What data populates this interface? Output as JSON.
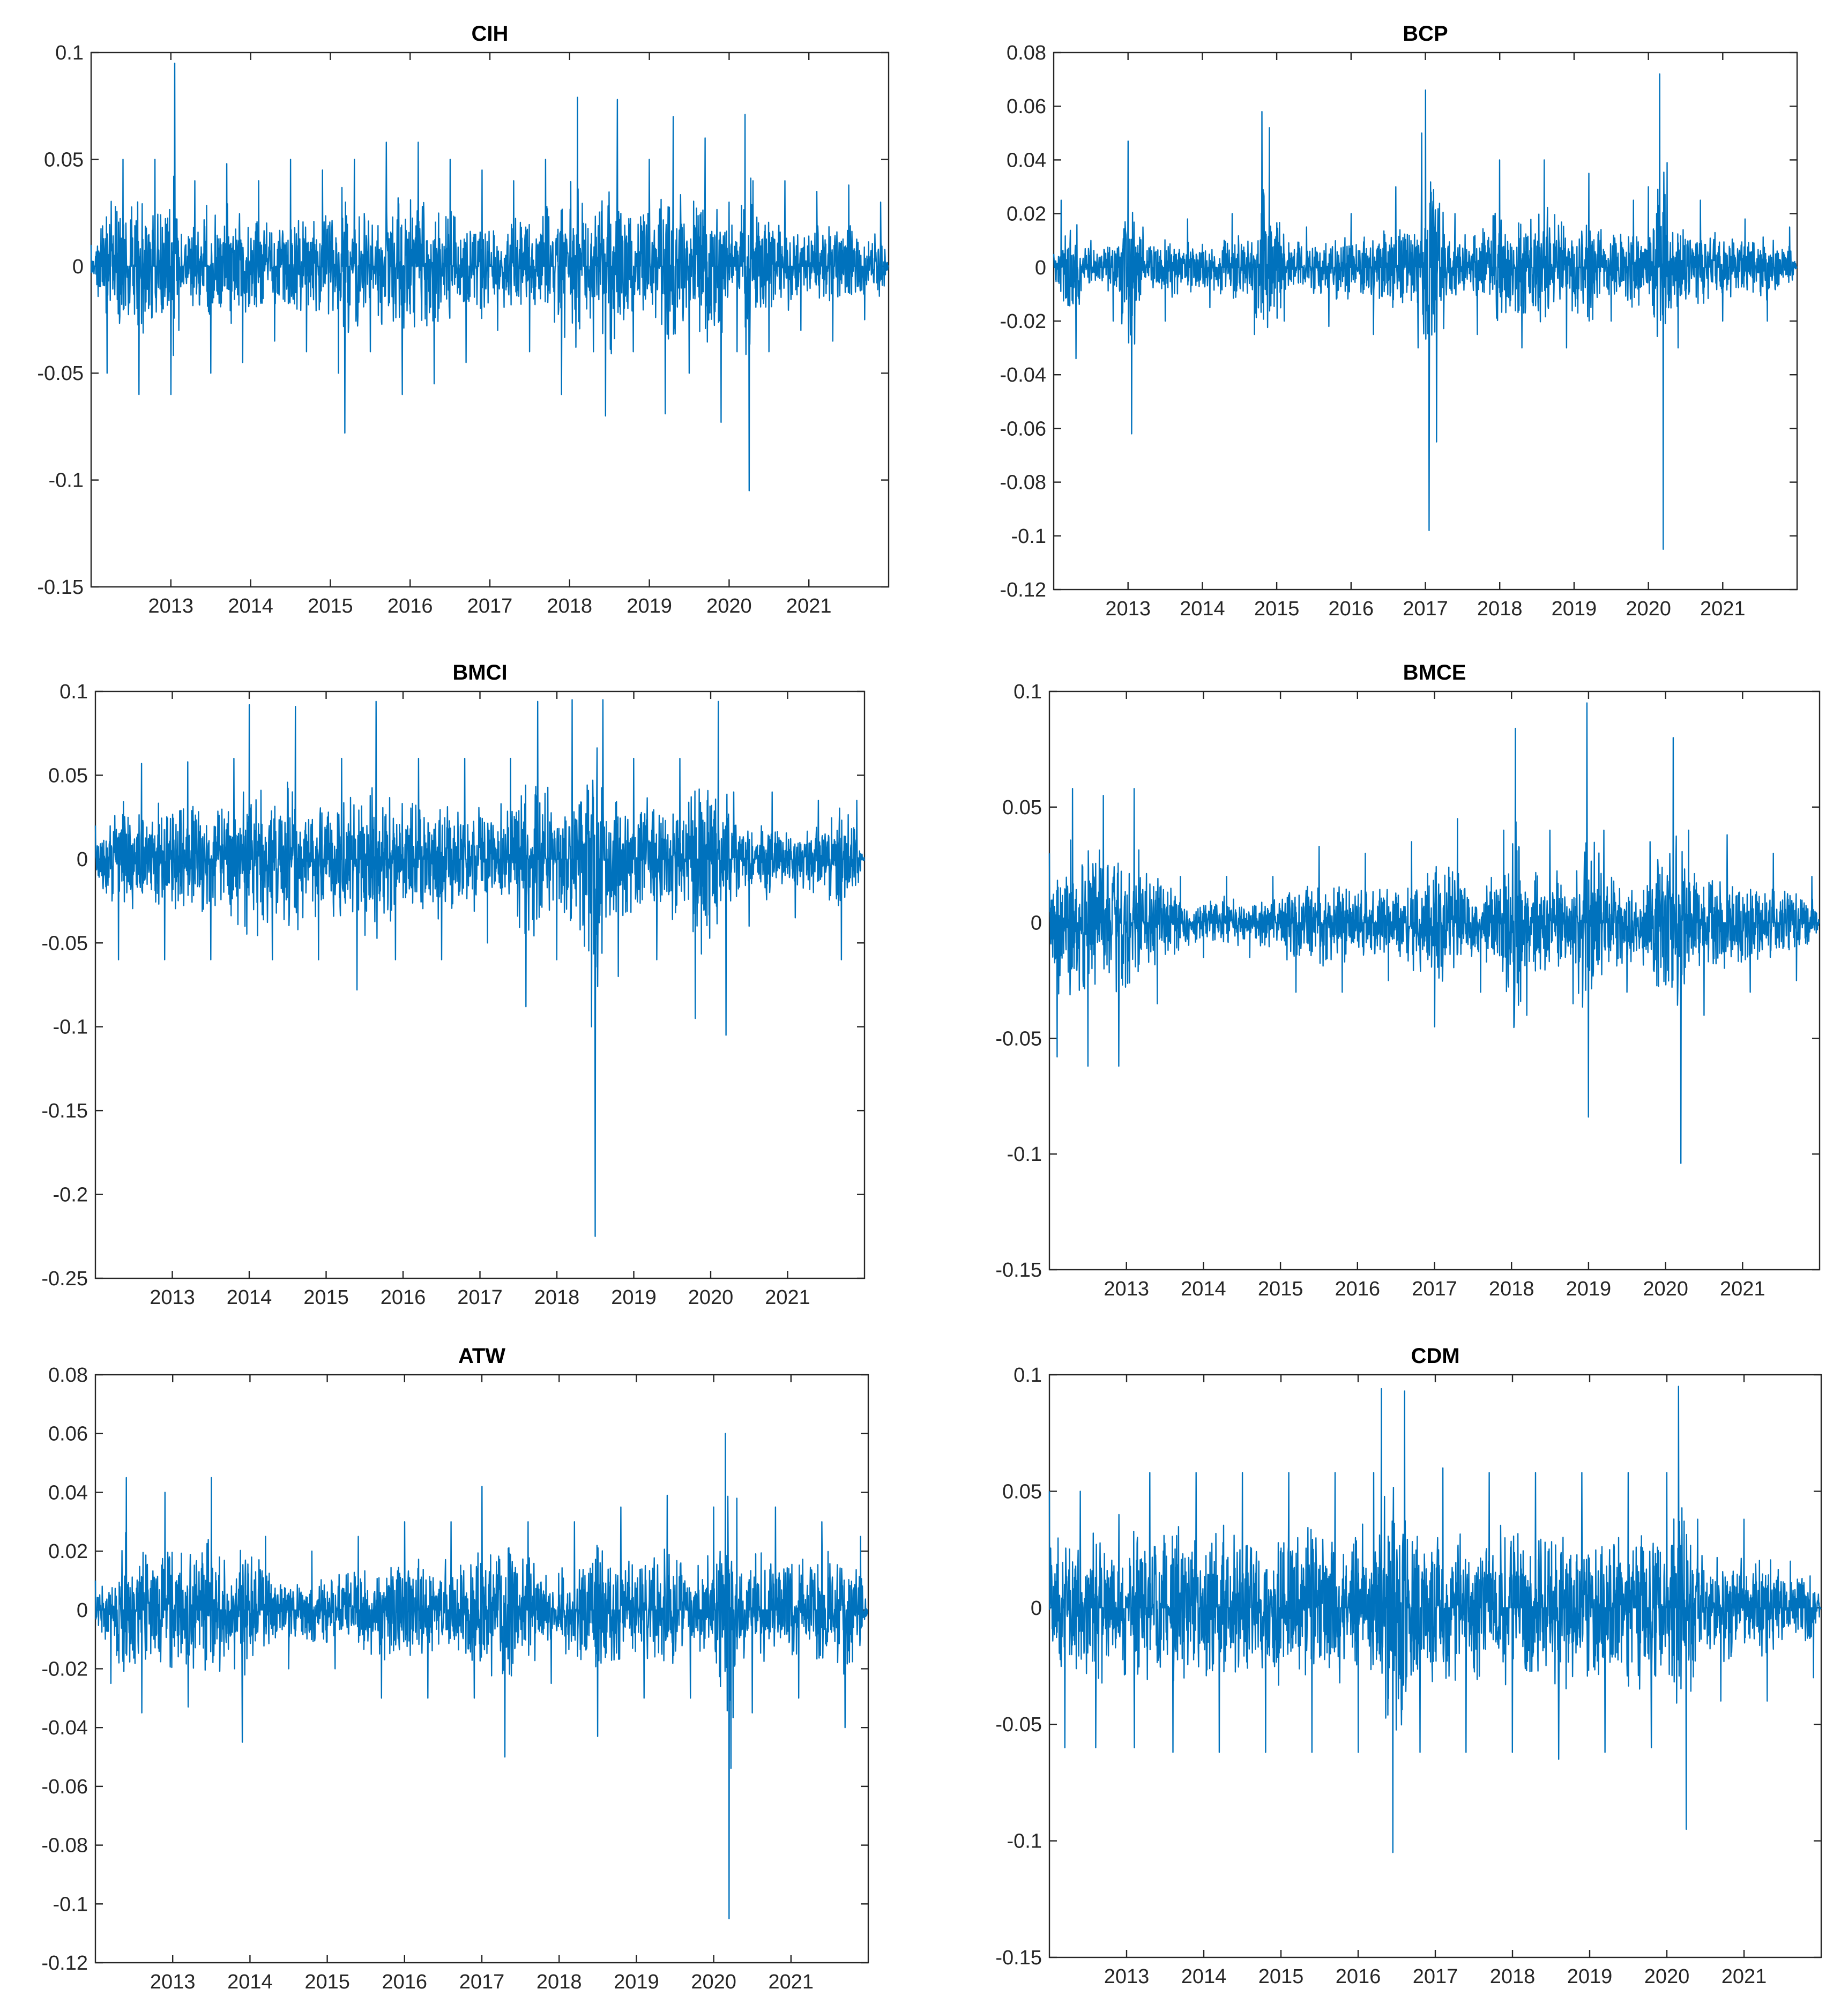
{
  "figure": {
    "line_color": "#0072BD",
    "axis_color": "#262626"
  },
  "chart_data": [
    {
      "type": "line",
      "title": "CIH",
      "xlabel": "",
      "ylabel": "",
      "xlim": [
        2012.0,
        2022.0
      ],
      "ylim": [
        -0.15,
        0.1
      ],
      "yticks": [
        0.1,
        0.05,
        0,
        -0.05,
        -0.1,
        -0.15
      ],
      "ytick_labels": [
        "0.1",
        "0.05",
        "0",
        "-0.05",
        "-0.1",
        "-0.15"
      ],
      "xticks": [
        2013,
        2014,
        2015,
        2016,
        2017,
        2018,
        2019,
        2020,
        2021
      ],
      "xtick_labels": [
        "2013",
        "2014",
        "2015",
        "2016",
        "2017",
        "2018",
        "2019",
        "2020",
        "2021"
      ],
      "grid": false,
      "series": [
        {
          "x": [
            2012.0,
            2012.2,
            2012.4,
            2012.6,
            2012.8,
            2013.0,
            2013.05,
            2013.1,
            2013.3,
            2013.5,
            2013.7,
            2013.9,
            2014.1,
            2014.3,
            2014.5,
            2014.7,
            2014.9,
            2015.1,
            2015.18,
            2015.3,
            2015.5,
            2015.7,
            2015.9,
            2016.1,
            2016.3,
            2016.5,
            2016.7,
            2016.9,
            2017.1,
            2017.3,
            2017.5,
            2017.7,
            2017.9,
            2018.1,
            2018.3,
            2018.45,
            2018.6,
            2018.8,
            2019.0,
            2019.2,
            2019.3,
            2019.5,
            2019.7,
            2019.9,
            2020.0,
            2020.1,
            2020.2,
            2020.25,
            2020.3,
            2020.5,
            2020.7,
            2020.9,
            2021.1,
            2021.3,
            2021.5,
            2021.7,
            2021.9,
            2022.0
          ],
          "y": [
            0.01,
            -0.05,
            0.05,
            -0.06,
            0.05,
            -0.06,
            0.095,
            -0.03,
            0.04,
            -0.05,
            0.048,
            -0.045,
            0.04,
            -0.035,
            0.05,
            -0.04,
            0.045,
            -0.05,
            -0.078,
            0.05,
            -0.04,
            0.058,
            -0.06,
            0.058,
            -0.055,
            0.05,
            -0.045,
            0.045,
            -0.03,
            0.04,
            -0.04,
            0.05,
            -0.06,
            0.079,
            -0.04,
            -0.07,
            0.078,
            -0.04,
            0.05,
            -0.069,
            0.07,
            -0.05,
            0.06,
            -0.073,
            0.03,
            -0.04,
            0.071,
            -0.105,
            0.04,
            -0.04,
            0.04,
            -0.03,
            0.035,
            -0.035,
            0.038,
            -0.025,
            0.03,
            0.0
          ]
        }
      ]
    },
    {
      "type": "line",
      "title": "BCP",
      "xlabel": "",
      "ylabel": "",
      "xlim": [
        2012.0,
        2022.0
      ],
      "ylim": [
        -0.12,
        0.08
      ],
      "yticks": [
        0.08,
        0.06,
        0.04,
        0.02,
        0,
        -0.02,
        -0.04,
        -0.06,
        -0.08,
        -0.1,
        -0.12
      ],
      "ytick_labels": [
        "0.08",
        "0.06",
        "0.04",
        "0.02",
        "0",
        "-0.02",
        "-0.04",
        "-0.06",
        "-0.08",
        "-0.1",
        "-0.12"
      ],
      "xticks": [
        2013,
        2014,
        2015,
        2016,
        2017,
        2018,
        2019,
        2020,
        2021
      ],
      "xtick_labels": [
        "2013",
        "2014",
        "2015",
        "2016",
        "2017",
        "2018",
        "2019",
        "2020",
        "2021"
      ],
      "grid": false,
      "series": [
        {
          "x": [
            2012.0,
            2012.1,
            2012.3,
            2012.5,
            2012.8,
            2013.0,
            2013.05,
            2013.2,
            2013.5,
            2013.8,
            2014.1,
            2014.4,
            2014.7,
            2014.8,
            2014.9,
            2015.1,
            2015.4,
            2015.7,
            2016.0,
            2016.3,
            2016.6,
            2016.9,
            2016.95,
            2017.0,
            2017.05,
            2017.15,
            2017.4,
            2017.7,
            2018.0,
            2018.3,
            2018.6,
            2018.9,
            2019.2,
            2019.5,
            2019.8,
            2020.0,
            2020.15,
            2020.2,
            2020.25,
            2020.4,
            2020.7,
            2021.0,
            2021.3,
            2021.6,
            2021.9,
            2022.0
          ],
          "y": [
            0.005,
            0.025,
            -0.034,
            0.01,
            -0.02,
            0.047,
            -0.062,
            0.015,
            -0.02,
            0.018,
            -0.015,
            0.02,
            -0.025,
            0.058,
            0.052,
            -0.02,
            0.015,
            -0.022,
            0.02,
            -0.025,
            0.03,
            -0.03,
            0.05,
            0.066,
            -0.098,
            -0.065,
            0.02,
            -0.025,
            0.04,
            -0.03,
            0.04,
            -0.03,
            0.035,
            -0.02,
            0.025,
            0.03,
            0.072,
            -0.105,
            0.039,
            -0.03,
            0.025,
            -0.02,
            0.018,
            -0.02,
            0.015,
            0.0
          ]
        }
      ]
    },
    {
      "type": "line",
      "title": "BMCI",
      "xlabel": "",
      "ylabel": "",
      "xlim": [
        2012.0,
        2022.0
      ],
      "ylim": [
        -0.25,
        0.1
      ],
      "yticks": [
        0.1,
        0.05,
        0,
        -0.05,
        -0.1,
        -0.15,
        -0.2,
        -0.25
      ],
      "ytick_labels": [
        "0.1",
        "0.05",
        "0",
        "-0.05",
        "-0.1",
        "-0.15",
        "-0.2",
        "-0.25"
      ],
      "xticks": [
        2013,
        2014,
        2015,
        2016,
        2017,
        2018,
        2019,
        2020,
        2021
      ],
      "xtick_labels": [
        "2013",
        "2014",
        "2015",
        "2016",
        "2017",
        "2018",
        "2019",
        "2020",
        "2021"
      ],
      "grid": false,
      "series": [
        {
          "x": [
            2012.0,
            2012.3,
            2012.6,
            2012.9,
            2013.2,
            2013.5,
            2013.8,
            2014.0,
            2014.3,
            2014.6,
            2014.9,
            2015.2,
            2015.4,
            2015.65,
            2015.9,
            2016.2,
            2016.5,
            2016.8,
            2017.1,
            2017.4,
            2017.6,
            2017.75,
            2018.0,
            2018.2,
            2018.45,
            2018.5,
            2018.6,
            2018.8,
            2019.0,
            2019.3,
            2019.6,
            2019.8,
            2020.1,
            2020.2,
            2020.3,
            2020.5,
            2020.8,
            2021.1,
            2021.4,
            2021.7,
            2021.9,
            2022.0
          ],
          "y": [
            0.02,
            -0.06,
            0.057,
            -0.06,
            0.058,
            -0.06,
            0.06,
            0.092,
            -0.06,
            0.091,
            -0.06,
            0.06,
            -0.078,
            0.094,
            -0.06,
            0.06,
            -0.06,
            0.06,
            -0.05,
            0.06,
            -0.088,
            0.094,
            -0.06,
            0.095,
            -0.1,
            -0.225,
            0.095,
            -0.07,
            0.06,
            -0.06,
            0.06,
            -0.095,
            0.094,
            -0.105,
            0.04,
            -0.04,
            0.04,
            -0.035,
            0.035,
            -0.06,
            0.035,
            0.0
          ]
        }
      ]
    },
    {
      "type": "line",
      "title": "BMCE",
      "xlabel": "",
      "ylabel": "",
      "xlim": [
        2012.0,
        2022.0
      ],
      "ylim": [
        -0.15,
        0.1
      ],
      "yticks": [
        0.1,
        0.05,
        0,
        -0.05,
        -0.1,
        -0.15
      ],
      "ytick_labels": [
        "0.1",
        "0.05",
        "0",
        "-0.05",
        "-0.1",
        "-0.15"
      ],
      "xticks": [
        2013,
        2014,
        2015,
        2016,
        2017,
        2018,
        2019,
        2020,
        2021
      ],
      "xtick_labels": [
        "2013",
        "2014",
        "2015",
        "2016",
        "2017",
        "2018",
        "2019",
        "2020",
        "2021"
      ],
      "grid": false,
      "series": [
        {
          "x": [
            2012.0,
            2012.1,
            2012.3,
            2012.5,
            2012.7,
            2012.9,
            2013.1,
            2013.4,
            2013.7,
            2014.0,
            2014.3,
            2014.6,
            2014.9,
            2015.2,
            2015.5,
            2015.8,
            2016.1,
            2016.4,
            2016.7,
            2017.0,
            2017.3,
            2017.6,
            2017.9,
            2018.05,
            2018.2,
            2018.5,
            2018.8,
            2018.98,
            2019.0,
            2019.2,
            2019.5,
            2019.8,
            2020.1,
            2020.2,
            2020.3,
            2020.5,
            2020.8,
            2021.1,
            2021.4,
            2021.7,
            2021.9,
            2022.0
          ],
          "y": [
            0.03,
            -0.058,
            0.058,
            -0.062,
            0.055,
            -0.062,
            0.058,
            -0.035,
            0.02,
            -0.015,
            0.02,
            -0.015,
            0.02,
            -0.03,
            0.033,
            -0.03,
            0.03,
            -0.025,
            0.035,
            -0.045,
            0.045,
            -0.03,
            0.04,
            0.084,
            -0.04,
            0.04,
            -0.035,
            0.095,
            -0.084,
            0.04,
            -0.03,
            0.035,
            0.08,
            -0.104,
            0.04,
            -0.04,
            0.038,
            -0.03,
            0.03,
            -0.025,
            0.02,
            0.0
          ]
        }
      ]
    },
    {
      "type": "line",
      "title": "ATW",
      "xlabel": "",
      "ylabel": "",
      "xlim": [
        2012.0,
        2022.0
      ],
      "ylim": [
        -0.12,
        0.08
      ],
      "yticks": [
        0.08,
        0.06,
        0.04,
        0.02,
        0,
        -0.02,
        -0.04,
        -0.06,
        -0.08,
        -0.1,
        -0.12
      ],
      "ytick_labels": [
        "0.08",
        "0.06",
        "0.04",
        "0.02",
        "0",
        "-0.02",
        "-0.04",
        "-0.06",
        "-0.08",
        "-0.1",
        "-0.12"
      ],
      "xticks": [
        2013,
        2014,
        2015,
        2016,
        2017,
        2018,
        2019,
        2020,
        2021
      ],
      "xtick_labels": [
        "2013",
        "2014",
        "2015",
        "2016",
        "2017",
        "2018",
        "2019",
        "2020",
        "2021"
      ],
      "grid": false,
      "series": [
        {
          "x": [
            2012.0,
            2012.2,
            2012.4,
            2012.6,
            2012.9,
            2013.2,
            2013.5,
            2013.8,
            2013.9,
            2014.2,
            2014.5,
            2014.8,
            2015.1,
            2015.4,
            2015.7,
            2016.0,
            2016.3,
            2016.6,
            2016.9,
            2017.0,
            2017.3,
            2017.6,
            2017.9,
            2018.2,
            2018.5,
            2018.8,
            2019.1,
            2019.4,
            2019.7,
            2020.0,
            2020.15,
            2020.2,
            2020.3,
            2020.5,
            2020.8,
            2021.1,
            2021.4,
            2021.7,
            2021.9,
            2022.0
          ],
          "y": [
            0.01,
            -0.025,
            0.045,
            -0.035,
            0.04,
            -0.033,
            0.045,
            -0.02,
            -0.045,
            0.025,
            -0.02,
            0.02,
            -0.02,
            0.025,
            -0.03,
            0.03,
            -0.03,
            0.03,
            -0.03,
            0.042,
            -0.05,
            0.03,
            -0.025,
            0.03,
            -0.043,
            0.035,
            -0.03,
            0.039,
            -0.03,
            0.035,
            0.06,
            -0.105,
            0.038,
            -0.035,
            0.035,
            -0.03,
            0.03,
            -0.04,
            0.025,
            0.0
          ]
        }
      ]
    },
    {
      "type": "line",
      "title": "CDM",
      "xlabel": "",
      "ylabel": "",
      "xlim": [
        2012.0,
        2022.0
      ],
      "ylim": [
        -0.15,
        0.1
      ],
      "yticks": [
        0.1,
        0.05,
        0,
        -0.05,
        -0.1,
        -0.15
      ],
      "ytick_labels": [
        "0.1",
        "0.05",
        "0",
        "-0.05",
        "-0.1",
        "-0.15"
      ],
      "xticks": [
        2013,
        2014,
        2015,
        2016,
        2017,
        2018,
        2019,
        2020,
        2021
      ],
      "xtick_labels": [
        "2013",
        "2014",
        "2015",
        "2016",
        "2017",
        "2018",
        "2019",
        "2020",
        "2021"
      ],
      "grid": false,
      "series": [
        {
          "x": [
            2012.0,
            2012.2,
            2012.4,
            2012.6,
            2012.9,
            2013.1,
            2013.3,
            2013.6,
            2013.9,
            2014.2,
            2014.5,
            2014.8,
            2015.1,
            2015.4,
            2015.7,
            2016.0,
            2016.2,
            2016.3,
            2016.45,
            2016.6,
            2016.8,
            2017.1,
            2017.4,
            2017.7,
            2018.0,
            2018.3,
            2018.6,
            2018.9,
            2019.2,
            2019.5,
            2019.8,
            2020.0,
            2020.15,
            2020.25,
            2020.4,
            2020.7,
            2021.0,
            2021.3,
            2021.6,
            2021.9,
            2022.0
          ],
          "y": [
            0.05,
            -0.06,
            0.05,
            -0.06,
            0.04,
            -0.06,
            0.058,
            -0.062,
            0.058,
            -0.062,
            0.058,
            -0.062,
            0.058,
            -0.062,
            0.058,
            -0.062,
            0.058,
            0.094,
            -0.105,
            0.093,
            -0.062,
            0.06,
            -0.062,
            0.058,
            -0.062,
            0.058,
            -0.065,
            0.058,
            -0.062,
            0.058,
            -0.06,
            0.058,
            0.095,
            -0.095,
            0.038,
            -0.04,
            0.038,
            -0.04,
            0.02,
            -0.03,
            0.0
          ]
        }
      ]
    }
  ]
}
